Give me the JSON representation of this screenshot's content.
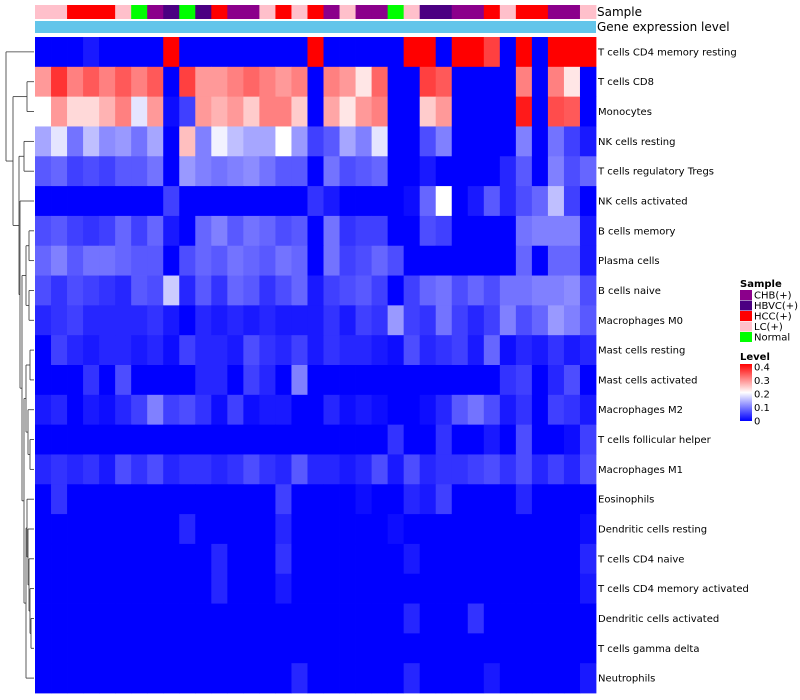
{
  "chart_data": {
    "type": "heatmap",
    "title": "",
    "annotation_labels": {
      "sample": "Sample",
      "gene_expression_level": "Gene expression level"
    },
    "sample_groups": [
      "LC(+)",
      "LC(+)",
      "HCC(+)",
      "HCC(+)",
      "HCC(+)",
      "LC(+)",
      "Normal",
      "CHB(+)",
      "HBVC(+)",
      "Normal",
      "HBVC(+)",
      "HCC(+)",
      "CHB(+)",
      "CHB(+)",
      "LC(+)",
      "HCC(+)",
      "LC(+)",
      "HCC(+)",
      "CHB(+)",
      "LC(+)",
      "CHB(+)",
      "CHB(+)",
      "Normal",
      "LC(+)",
      "HBVC(+)",
      "HBVC(+)",
      "CHB(+)",
      "CHB(+)",
      "HCC(+)",
      "LC(+)",
      "HCC(+)",
      "HCC(+)",
      "CHB(+)",
      "CHB(+)",
      "LC(+)"
    ],
    "rows": [
      "T cells CD4 memory resting",
      "T cells CD8",
      "Monocytes",
      "NK cells resting",
      "T cells regulatory  Tregs",
      "NK cells activated",
      "B cells memory",
      "Plasma cells",
      "B cells naive",
      "Macrophages M0",
      "Mast cells resting",
      "Mast cells activated",
      "Macrophages M2",
      "T cells follicular helper",
      "Macrophages M1",
      "Eosinophils",
      "Dendritic cells resting",
      "T cells CD4 naive",
      "T cells CD4 memory activated",
      "Dendritic cells activated",
      "T cells gamma delta",
      "Neutrophils"
    ],
    "values": [
      [
        0,
        0,
        0,
        0.02,
        0,
        0,
        0,
        0,
        0.42,
        0,
        0,
        0,
        0,
        0,
        0,
        0,
        0,
        0.42,
        0,
        0,
        0,
        0,
        0,
        0.42,
        0.42,
        0,
        0.42,
        0.42,
        0.35,
        0,
        0.42,
        0,
        0.42,
        0.42,
        0.42
      ],
      [
        0.28,
        0.36,
        0.3,
        0.33,
        0.3,
        0.33,
        0.3,
        0.33,
        0,
        0.35,
        0.28,
        0.28,
        0.3,
        0.32,
        0.3,
        0.28,
        0.3,
        0,
        0.3,
        0.28,
        0.22,
        0.32,
        0,
        0,
        0.35,
        0.33,
        0,
        0,
        0,
        0,
        0.3,
        0,
        0.3,
        0.22,
        0
      ],
      [
        0.2,
        0.28,
        0.23,
        0.23,
        0.26,
        0.3,
        0.18,
        0.28,
        0.01,
        0.05,
        0.28,
        0.26,
        0.28,
        0.24,
        0.3,
        0.3,
        0.24,
        0,
        0.27,
        0.22,
        0.28,
        0.3,
        0,
        0,
        0.24,
        0.28,
        0,
        0,
        0,
        0,
        0.38,
        0,
        0.34,
        0.33,
        0
      ],
      [
        0.13,
        0.18,
        0.09,
        0.15,
        0.11,
        0.12,
        0.09,
        0.13,
        0,
        0.25,
        0.1,
        0.19,
        0.15,
        0.13,
        0.13,
        0.2,
        0.12,
        0.05,
        0.07,
        0.13,
        0.1,
        0.18,
        0,
        0,
        0.06,
        0.1,
        0,
        0,
        0,
        0,
        0.1,
        0,
        0.09,
        0.05,
        0.02
      ],
      [
        0.07,
        0.08,
        0.05,
        0.06,
        0.05,
        0.07,
        0.07,
        0.09,
        0,
        0.12,
        0.1,
        0.09,
        0.1,
        0.11,
        0.09,
        0.07,
        0.07,
        0,
        0.09,
        0.06,
        0.07,
        0.08,
        0,
        0,
        0.02,
        0,
        0,
        0,
        0,
        0.03,
        0.07,
        0,
        0.1,
        0.06,
        0.08
      ],
      [
        0,
        0,
        0,
        0,
        0,
        0,
        0,
        0,
        0.05,
        0,
        0,
        0,
        0,
        0,
        0,
        0,
        0,
        0.04,
        0.02,
        0,
        0,
        0,
        0,
        0.01,
        0.08,
        0.2,
        0,
        0.02,
        0.07,
        0.03,
        0.06,
        0.08,
        0.15,
        0.05,
        0
      ],
      [
        0.06,
        0.07,
        0.05,
        0.04,
        0.05,
        0.08,
        0.05,
        0.08,
        0.02,
        0,
        0.08,
        0.1,
        0.07,
        0.09,
        0.08,
        0.06,
        0.07,
        0,
        0.09,
        0.04,
        0.05,
        0.05,
        0,
        0,
        0.06,
        0.05,
        0,
        0,
        0,
        0,
        0.09,
        0.1,
        0.1,
        0.1,
        0.02
      ],
      [
        0.08,
        0.1,
        0.07,
        0.09,
        0.09,
        0.08,
        0.07,
        0.07,
        0,
        0.06,
        0.08,
        0.07,
        0.09,
        0.08,
        0.07,
        0.09,
        0.08,
        0,
        0.09,
        0.05,
        0.06,
        0.08,
        0.06,
        0,
        0,
        0,
        0,
        0,
        0,
        0,
        0.08,
        0,
        0.08,
        0.08,
        0.02
      ],
      [
        0.06,
        0.04,
        0.06,
        0.05,
        0.04,
        0.03,
        0.07,
        0.06,
        0.16,
        0.03,
        0.07,
        0.04,
        0.08,
        0.07,
        0.04,
        0.06,
        0.08,
        0.02,
        0.05,
        0.06,
        0.07,
        0.05,
        0,
        0.05,
        0.08,
        0.09,
        0.06,
        0.08,
        0.06,
        0.09,
        0.09,
        0.1,
        0.1,
        0.11,
        0.06
      ],
      [
        0.03,
        0.04,
        0.05,
        0.03,
        0.03,
        0.03,
        0.03,
        0.04,
        0.02,
        0,
        0.03,
        0.02,
        0.03,
        0.02,
        0.03,
        0.02,
        0.02,
        0.02,
        0.04,
        0.02,
        0.05,
        0.04,
        0.12,
        0.05,
        0.04,
        0.09,
        0.05,
        0.03,
        0.05,
        0.1,
        0.06,
        0.08,
        0.12,
        0.1,
        0.07
      ],
      [
        0,
        0.05,
        0.03,
        0.02,
        0.03,
        0.03,
        0.02,
        0.03,
        0.01,
        0.05,
        0.03,
        0.03,
        0.02,
        0.06,
        0.04,
        0.03,
        0.05,
        0.02,
        0.04,
        0.03,
        0.03,
        0.02,
        0.01,
        0.06,
        0.03,
        0.04,
        0.05,
        0.02,
        0.08,
        0.01,
        0.03,
        0.02,
        0.04,
        0.02,
        0.03
      ],
      [
        0,
        0,
        0,
        0.04,
        0,
        0.06,
        0,
        0,
        0,
        0,
        0.03,
        0.03,
        0,
        0.05,
        0.03,
        0,
        0.1,
        0,
        0,
        0,
        0,
        0,
        0,
        0,
        0,
        0,
        0,
        0,
        0,
        0.04,
        0.05,
        0,
        0.03,
        0.06,
        0
      ],
      [
        0.02,
        0.03,
        0,
        0.02,
        0.01,
        0.03,
        0.05,
        0.1,
        0.05,
        0.06,
        0.04,
        0.01,
        0.05,
        0.01,
        0.02,
        0.02,
        0,
        0,
        0.03,
        0.01,
        0.02,
        0.01,
        0,
        0,
        0.01,
        0.03,
        0.07,
        0.09,
        0.06,
        0.02,
        0.04,
        0,
        0.05,
        0.04,
        0.02
      ],
      [
        0,
        0,
        0,
        0,
        0,
        0,
        0,
        0,
        0,
        0,
        0,
        0,
        0,
        0,
        0,
        0,
        0,
        0,
        0,
        0,
        0,
        0,
        0.04,
        0,
        0,
        0.04,
        0,
        0,
        0.02,
        0,
        0.06,
        0,
        0,
        0.01,
        0.05
      ],
      [
        0.03,
        0.04,
        0.03,
        0.04,
        0.02,
        0.06,
        0.04,
        0.06,
        0.03,
        0.04,
        0.04,
        0.03,
        0.04,
        0.06,
        0.04,
        0.03,
        0.07,
        0.03,
        0.03,
        0.02,
        0.03,
        0.06,
        0.02,
        0.06,
        0.03,
        0.04,
        0.04,
        0.05,
        0.06,
        0.04,
        0.06,
        0.03,
        0.05,
        0.03,
        0.06
      ],
      [
        0,
        0.04,
        0,
        0,
        0,
        0,
        0,
        0,
        0,
        0,
        0,
        0,
        0,
        0,
        0,
        0.05,
        0,
        0,
        0,
        0,
        0.01,
        0,
        0,
        0.03,
        0.02,
        0.05,
        0,
        0,
        0,
        0,
        0.03,
        0,
        0,
        0,
        0
      ],
      [
        0,
        0,
        0,
        0,
        0,
        0,
        0,
        0,
        0,
        0.03,
        0,
        0,
        0,
        0,
        0,
        0.03,
        0,
        0,
        0,
        0,
        0,
        0,
        0.01,
        0,
        0,
        0,
        0,
        0,
        0,
        0,
        0,
        0,
        0,
        0,
        0.01
      ],
      [
        0,
        0,
        0,
        0,
        0,
        0,
        0,
        0,
        0,
        0,
        0,
        0.03,
        0,
        0,
        0,
        0.04,
        0,
        0,
        0,
        0,
        0,
        0,
        0,
        0.02,
        0,
        0,
        0,
        0,
        0,
        0,
        0,
        0,
        0,
        0,
        0.03
      ],
      [
        0,
        0,
        0,
        0,
        0,
        0,
        0,
        0,
        0,
        0,
        0,
        0.03,
        0,
        0,
        0,
        0.02,
        0,
        0,
        0,
        0,
        0,
        0,
        0,
        0,
        0,
        0,
        0,
        0,
        0,
        0,
        0,
        0,
        0,
        0,
        0.02
      ],
      [
        0,
        0,
        0,
        0,
        0,
        0,
        0,
        0,
        0,
        0,
        0,
        0,
        0,
        0,
        0,
        0,
        0,
        0,
        0,
        0,
        0,
        0,
        0,
        0.03,
        0,
        0,
        0,
        0.04,
        0,
        0,
        0,
        0,
        0,
        0,
        0
      ],
      [
        0,
        0,
        0,
        0,
        0,
        0,
        0,
        0,
        0,
        0,
        0,
        0,
        0,
        0,
        0,
        0,
        0,
        0,
        0,
        0,
        0,
        0,
        0,
        0,
        0,
        0,
        0,
        0,
        0,
        0,
        0,
        0,
        0,
        0,
        0
      ],
      [
        0,
        0,
        0,
        0,
        0,
        0,
        0,
        0,
        0,
        0,
        0,
        0,
        0,
        0,
        0,
        0,
        0.03,
        0,
        0,
        0,
        0,
        0,
        0,
        0.03,
        0,
        0,
        0,
        0,
        0.02,
        0,
        0,
        0,
        0,
        0,
        0.02
      ]
    ],
    "color_scale": {
      "min": 0,
      "mid": 0.2,
      "max": 0.4,
      "low_color": "#0000ff",
      "mid_color": "#ffffff",
      "high_color": "#ff0000"
    },
    "gene_expression_color": "#63c5ea",
    "legend": {
      "sample": {
        "title": "Sample",
        "items": [
          {
            "label": "CHB(+)",
            "color": "#8b008b"
          },
          {
            "label": "HBVC(+)",
            "color": "#4b0082"
          },
          {
            "label": "HCC(+)",
            "color": "#ff0000"
          },
          {
            "label": "LC(+)",
            "color": "#ffc0cb"
          },
          {
            "label": "Normal",
            "color": "#00ff00"
          }
        ]
      },
      "level": {
        "title": "Level",
        "ticks": [
          "0.4",
          "0.3",
          "0.2",
          "0.1",
          "0"
        ]
      }
    }
  }
}
